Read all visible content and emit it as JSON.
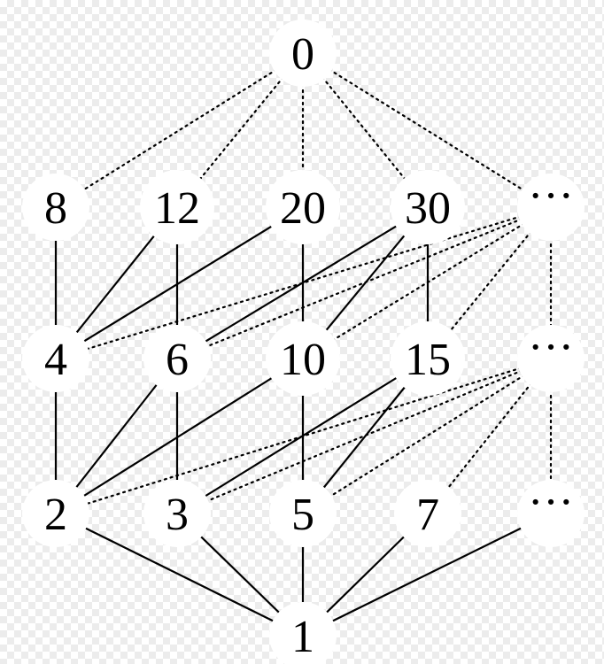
{
  "nodes": [
    {
      "id": "n0",
      "label": "0"
    },
    {
      "id": "n8",
      "label": "8"
    },
    {
      "id": "n12",
      "label": "12"
    },
    {
      "id": "n20",
      "label": "20"
    },
    {
      "id": "n30",
      "label": "30"
    },
    {
      "id": "e3",
      "label": "···"
    },
    {
      "id": "n4",
      "label": "4"
    },
    {
      "id": "n6",
      "label": "6"
    },
    {
      "id": "n10",
      "label": "10"
    },
    {
      "id": "n15",
      "label": "15"
    },
    {
      "id": "e2",
      "label": "···"
    },
    {
      "id": "n2",
      "label": "2"
    },
    {
      "id": "n3",
      "label": "3"
    },
    {
      "id": "n5",
      "label": "5"
    },
    {
      "id": "n7",
      "label": "7"
    },
    {
      "id": "e1",
      "label": "···"
    },
    {
      "id": "n1",
      "label": "1"
    }
  ],
  "edges": [
    {
      "from": "n0",
      "to": "n8",
      "style": "dotted"
    },
    {
      "from": "n0",
      "to": "n12",
      "style": "dotted"
    },
    {
      "from": "n0",
      "to": "n20",
      "style": "dotted"
    },
    {
      "from": "n0",
      "to": "n30",
      "style": "dotted"
    },
    {
      "from": "n0",
      "to": "e3",
      "style": "dotted"
    },
    {
      "from": "n8",
      "to": "n4",
      "style": "solid"
    },
    {
      "from": "n12",
      "to": "n4",
      "style": "solid"
    },
    {
      "from": "n12",
      "to": "n6",
      "style": "solid"
    },
    {
      "from": "n20",
      "to": "n4",
      "style": "solid"
    },
    {
      "from": "n20",
      "to": "n10",
      "style": "solid"
    },
    {
      "from": "n30",
      "to": "n6",
      "style": "solid"
    },
    {
      "from": "n30",
      "to": "n10",
      "style": "solid"
    },
    {
      "from": "n30",
      "to": "n15",
      "style": "solid"
    },
    {
      "from": "e3",
      "to": "n4",
      "style": "dotted"
    },
    {
      "from": "e3",
      "to": "n6",
      "style": "dotted"
    },
    {
      "from": "e3",
      "to": "n10",
      "style": "dotted"
    },
    {
      "from": "e3",
      "to": "n15",
      "style": "dotted"
    },
    {
      "from": "e3",
      "to": "e2",
      "style": "dotted"
    },
    {
      "from": "n4",
      "to": "n2",
      "style": "solid"
    },
    {
      "from": "n6",
      "to": "n2",
      "style": "solid"
    },
    {
      "from": "n6",
      "to": "n3",
      "style": "solid"
    },
    {
      "from": "n10",
      "to": "n2",
      "style": "solid"
    },
    {
      "from": "n10",
      "to": "n5",
      "style": "solid"
    },
    {
      "from": "n15",
      "to": "n3",
      "style": "solid"
    },
    {
      "from": "n15",
      "to": "n5",
      "style": "solid"
    },
    {
      "from": "e2",
      "to": "n2",
      "style": "dotted"
    },
    {
      "from": "e2",
      "to": "n3",
      "style": "dotted"
    },
    {
      "from": "e2",
      "to": "n5",
      "style": "dotted"
    },
    {
      "from": "e2",
      "to": "n7",
      "style": "dotted"
    },
    {
      "from": "e2",
      "to": "e1",
      "style": "dotted"
    },
    {
      "from": "n2",
      "to": "n1",
      "style": "solid"
    },
    {
      "from": "n3",
      "to": "n1",
      "style": "solid"
    },
    {
      "from": "n5",
      "to": "n1",
      "style": "solid"
    },
    {
      "from": "n7",
      "to": "n1",
      "style": "solid"
    },
    {
      "from": "e1",
      "to": "n1",
      "style": "solid"
    }
  ]
}
